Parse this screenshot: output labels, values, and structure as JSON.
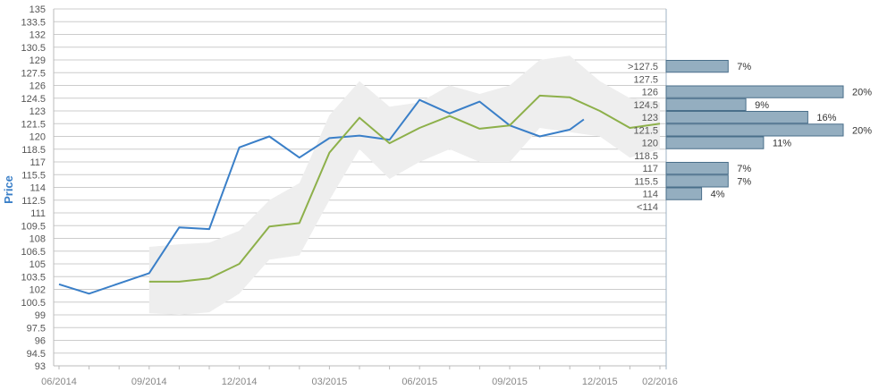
{
  "chart_data": {
    "type": "line",
    "ylabel": "Price",
    "ylim": [
      93,
      135
    ],
    "y_step": 1.5,
    "y_ticks": [
      "93",
      "94.5",
      "96",
      "97.5",
      "99",
      "100.5",
      "102",
      "103.5",
      "105",
      "106.5",
      "108",
      "109.5",
      "111",
      "112.5",
      "114",
      "115.5",
      "117",
      "118.5",
      "120",
      "121.5",
      "123",
      "124.5",
      "126",
      "127.5",
      "129",
      "130.5",
      "132",
      "133.5",
      "135"
    ],
    "x_tick_labels": [
      "06/2014",
      "09/2014",
      "12/2014",
      "03/2015",
      "06/2015",
      "09/2015",
      "12/2015",
      "02/2016"
    ],
    "grid": true,
    "series": [
      {
        "role": "actual",
        "color": "#3a7fc8",
        "points": [
          [
            "2014-06",
            102.6
          ],
          [
            "2014-07",
            101.5
          ],
          [
            "2014-09",
            103.9
          ],
          [
            "2014-10",
            109.3
          ],
          [
            "2014-11",
            109.1
          ],
          [
            "2014-12",
            118.7
          ],
          [
            "2015-01",
            120.0
          ],
          [
            "2015-02",
            117.5
          ],
          [
            "2015-03",
            119.8
          ],
          [
            "2015-04",
            120.1
          ],
          [
            "2015-05",
            119.6
          ],
          [
            "2015-06",
            124.3
          ],
          [
            "2015-07",
            122.7
          ],
          [
            "2015-08",
            124.1
          ],
          [
            "2015-09",
            121.3
          ],
          [
            "2015-10",
            120.0
          ],
          [
            "2015-11",
            120.8
          ],
          [
            "2015-11-15",
            122.0
          ]
        ]
      },
      {
        "role": "average",
        "color": "#8db04a",
        "points": [
          [
            "2014-09",
            102.9
          ],
          [
            "2014-10",
            102.9
          ],
          [
            "2014-11",
            103.3
          ],
          [
            "2014-12",
            105.0
          ],
          [
            "2015-01",
            109.4
          ],
          [
            "2015-02",
            109.8
          ],
          [
            "2015-03",
            118.1
          ],
          [
            "2015-04",
            122.2
          ],
          [
            "2015-05",
            119.2
          ],
          [
            "2015-06",
            121.0
          ],
          [
            "2015-07",
            122.4
          ],
          [
            "2015-08",
            120.9
          ],
          [
            "2015-09",
            121.3
          ],
          [
            "2015-10",
            124.8
          ],
          [
            "2015-11",
            124.6
          ],
          [
            "2015-12",
            123.0
          ],
          [
            "2016-01",
            121.0
          ],
          [
            "2016-02",
            121.5
          ]
        ]
      },
      {
        "role": "range-band",
        "color": "#eeeeee",
        "upper": [
          [
            "2014-09",
            107.0
          ],
          [
            "2014-10",
            107.3
          ],
          [
            "2014-11",
            107.5
          ],
          [
            "2014-12",
            108.9
          ],
          [
            "2015-01",
            112.5
          ],
          [
            "2015-02",
            114.5
          ],
          [
            "2015-03",
            122.5
          ],
          [
            "2015-04",
            126.5
          ],
          [
            "2015-05",
            123.5
          ],
          [
            "2015-06",
            124.0
          ],
          [
            "2015-07",
            126.0
          ],
          [
            "2015-08",
            125.0
          ],
          [
            "2015-09",
            126.0
          ],
          [
            "2015-10",
            129.0
          ],
          [
            "2015-11",
            129.5
          ],
          [
            "2015-12",
            126.5
          ],
          [
            "2016-01",
            124.5
          ],
          [
            "2016-02",
            124.0
          ]
        ],
        "lower": [
          [
            "2014-09",
            99.2
          ],
          [
            "2014-10",
            99.0
          ],
          [
            "2014-11",
            99.3
          ],
          [
            "2014-12",
            101.5
          ],
          [
            "2015-01",
            105.5
          ],
          [
            "2015-02",
            106.0
          ],
          [
            "2015-03",
            112.5
          ],
          [
            "2015-04",
            118.5
          ],
          [
            "2015-05",
            115.0
          ],
          [
            "2015-06",
            117.0
          ],
          [
            "2015-07",
            118.5
          ],
          [
            "2015-08",
            117.0
          ],
          [
            "2015-09",
            117.0
          ],
          [
            "2015-10",
            121.0
          ],
          [
            "2015-11",
            120.5
          ],
          [
            "2015-12",
            120.0
          ],
          [
            "2016-01",
            117.5
          ],
          [
            "2016-02",
            118.5
          ]
        ]
      }
    ],
    "histogram": {
      "bar_fill": "#94aec0",
      "bar_stroke": "#4a6f8a",
      "bins": [
        {
          "label": ">127.5",
          "low": 127.5,
          "high": 129,
          "pct": 7,
          "pct_label": "7%"
        },
        {
          "label": "127.5",
          "low": 126,
          "high": 127.5,
          "pct": 0,
          "pct_label": ""
        },
        {
          "label": "126",
          "low": 124.5,
          "high": 126,
          "pct": 20,
          "pct_label": "20%"
        },
        {
          "label": "124.5",
          "low": 123,
          "high": 124.5,
          "pct": 9,
          "pct_label": "9%"
        },
        {
          "label": "123",
          "low": 121.5,
          "high": 123,
          "pct": 16,
          "pct_label": "16%"
        },
        {
          "label": "121.5",
          "low": 120,
          "high": 121.5,
          "pct": 20,
          "pct_label": "20%"
        },
        {
          "label": "120",
          "low": 118.5,
          "high": 120,
          "pct": 11,
          "pct_label": "11%"
        },
        {
          "label": "118.5",
          "low": 117,
          "high": 118.5,
          "pct": 0,
          "pct_label": ""
        },
        {
          "label": "117",
          "low": 115.5,
          "high": 117,
          "pct": 7,
          "pct_label": "7%"
        },
        {
          "label": "115.5",
          "low": 114,
          "high": 115.5,
          "pct": 7,
          "pct_label": "7%"
        },
        {
          "label": "114",
          "low": 112.5,
          "high": 114,
          "pct": 4,
          "pct_label": "4%"
        },
        {
          "label": "<114",
          "low": 111,
          "high": 112.5,
          "pct": 0,
          "pct_label": ""
        }
      ]
    }
  },
  "colors": {
    "axis_label": "#3a7fc8",
    "grid": "#cccccc",
    "axis": "#9fb3c4"
  }
}
